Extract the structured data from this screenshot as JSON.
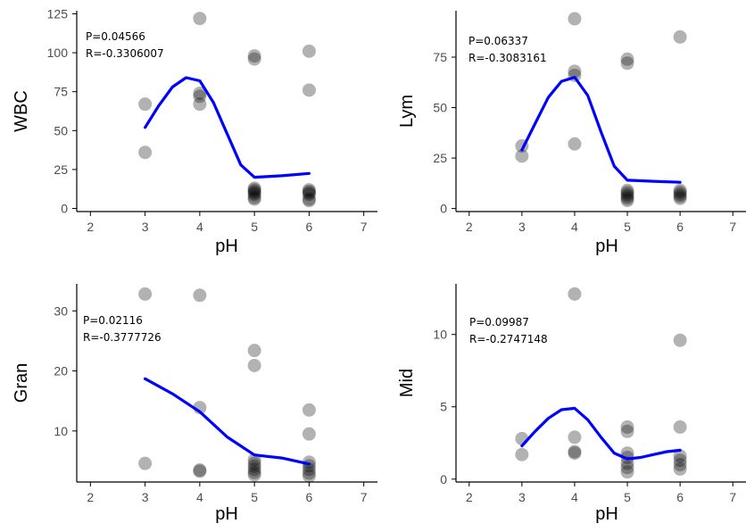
{
  "colors": {
    "points": "#000000",
    "smooth": "#0000ff",
    "axis": "#000000"
  },
  "chart_data": [
    {
      "type": "scatter",
      "title": "",
      "xlabel": "pH",
      "ylabel": "WBC",
      "xlim": [
        1.75,
        7.25
      ],
      "ylim": [
        -2,
        127
      ],
      "xticks": [
        2,
        3,
        4,
        5,
        6,
        7
      ],
      "yticks": [
        0,
        25,
        50,
        75,
        100,
        125
      ],
      "annotation": [
        "P=0.04566",
        "R=-0.3306007"
      ],
      "grid": false,
      "points": [
        {
          "x": 3,
          "y": 67
        },
        {
          "x": 3,
          "y": 36
        },
        {
          "x": 4,
          "y": 122
        },
        {
          "x": 4,
          "y": 74
        },
        {
          "x": 4,
          "y": 72
        },
        {
          "x": 4,
          "y": 67
        },
        {
          "x": 5,
          "y": 98
        },
        {
          "x": 5,
          "y": 96
        },
        {
          "x": 5,
          "y": 13
        },
        {
          "x": 5,
          "y": 12
        },
        {
          "x": 5,
          "y": 11
        },
        {
          "x": 5,
          "y": 10
        },
        {
          "x": 5,
          "y": 9
        },
        {
          "x": 5,
          "y": 7
        },
        {
          "x": 5,
          "y": 6
        },
        {
          "x": 6,
          "y": 101
        },
        {
          "x": 6,
          "y": 76
        },
        {
          "x": 6,
          "y": 12
        },
        {
          "x": 6,
          "y": 11
        },
        {
          "x": 6,
          "y": 10
        },
        {
          "x": 6,
          "y": 9
        },
        {
          "x": 6,
          "y": 6
        },
        {
          "x": 6,
          "y": 5
        }
      ],
      "smooth": [
        {
          "x": 3,
          "y": 52
        },
        {
          "x": 3.25,
          "y": 66
        },
        {
          "x": 3.5,
          "y": 78
        },
        {
          "x": 3.75,
          "y": 84
        },
        {
          "x": 4,
          "y": 82
        },
        {
          "x": 4.25,
          "y": 68
        },
        {
          "x": 4.5,
          "y": 48
        },
        {
          "x": 4.75,
          "y": 28
        },
        {
          "x": 5,
          "y": 20
        },
        {
          "x": 5.5,
          "y": 21
        },
        {
          "x": 6,
          "y": 22.5
        }
      ]
    },
    {
      "type": "scatter",
      "title": "",
      "xlabel": "pH",
      "ylabel": "Lym",
      "xlim": [
        1.75,
        7.25
      ],
      "ylim": [
        -1.5,
        98
      ],
      "xticks": [
        2,
        3,
        4,
        5,
        6,
        7
      ],
      "yticks": [
        0,
        25,
        50,
        75
      ],
      "annotation": [
        "P=0.06337",
        "R=-0.3083161"
      ],
      "grid": false,
      "points": [
        {
          "x": 3,
          "y": 31
        },
        {
          "x": 3,
          "y": 26
        },
        {
          "x": 4,
          "y": 94
        },
        {
          "x": 4,
          "y": 68
        },
        {
          "x": 4,
          "y": 66
        },
        {
          "x": 4,
          "y": 32
        },
        {
          "x": 5,
          "y": 74
        },
        {
          "x": 5,
          "y": 72
        },
        {
          "x": 5,
          "y": 9
        },
        {
          "x": 5,
          "y": 8
        },
        {
          "x": 5,
          "y": 7
        },
        {
          "x": 5,
          "y": 6
        },
        {
          "x": 5,
          "y": 5
        },
        {
          "x": 5,
          "y": 4
        },
        {
          "x": 6,
          "y": 85
        },
        {
          "x": 6,
          "y": 9
        },
        {
          "x": 6,
          "y": 8
        },
        {
          "x": 6,
          "y": 7
        },
        {
          "x": 6,
          "y": 6
        },
        {
          "x": 6,
          "y": 5
        }
      ],
      "smooth": [
        {
          "x": 3,
          "y": 29
        },
        {
          "x": 3.25,
          "y": 42
        },
        {
          "x": 3.5,
          "y": 55
        },
        {
          "x": 3.75,
          "y": 63
        },
        {
          "x": 4,
          "y": 65
        },
        {
          "x": 4.25,
          "y": 56
        },
        {
          "x": 4.5,
          "y": 38
        },
        {
          "x": 4.75,
          "y": 21
        },
        {
          "x": 5,
          "y": 14
        },
        {
          "x": 5.5,
          "y": 13.5
        },
        {
          "x": 6,
          "y": 13
        }
      ]
    },
    {
      "type": "scatter",
      "title": "",
      "xlabel": "pH",
      "ylabel": "Gran",
      "xlim": [
        1.75,
        7.25
      ],
      "ylim": [
        1.5,
        34.5
      ],
      "xticks": [
        2,
        3,
        4,
        5,
        6,
        7
      ],
      "yticks": [
        10,
        20,
        30
      ],
      "annotation": [
        "P=0.02116",
        "R=-0.3777726"
      ],
      "grid": false,
      "points": [
        {
          "x": 3,
          "y": 32.8
        },
        {
          "x": 3,
          "y": 4.6
        },
        {
          "x": 4,
          "y": 32.6
        },
        {
          "x": 4,
          "y": 13.9
        },
        {
          "x": 4,
          "y": 3.5
        },
        {
          "x": 4,
          "y": 3.3
        },
        {
          "x": 5,
          "y": 23.4
        },
        {
          "x": 5,
          "y": 20.9
        },
        {
          "x": 5,
          "y": 5.2
        },
        {
          "x": 5,
          "y": 4.6
        },
        {
          "x": 5,
          "y": 4.1
        },
        {
          "x": 5,
          "y": 3.6
        },
        {
          "x": 5,
          "y": 3.1
        },
        {
          "x": 5,
          "y": 2.7
        },
        {
          "x": 6,
          "y": 13.5
        },
        {
          "x": 6,
          "y": 9.5
        },
        {
          "x": 6,
          "y": 4.8
        },
        {
          "x": 6,
          "y": 4.2
        },
        {
          "x": 6,
          "y": 3.6
        },
        {
          "x": 6,
          "y": 3.0
        },
        {
          "x": 6,
          "y": 2.5
        }
      ],
      "smooth": [
        {
          "x": 3,
          "y": 18.7
        },
        {
          "x": 3.5,
          "y": 16.2
        },
        {
          "x": 4,
          "y": 13.2
        },
        {
          "x": 4.5,
          "y": 9
        },
        {
          "x": 5,
          "y": 6
        },
        {
          "x": 5.5,
          "y": 5.5
        },
        {
          "x": 6,
          "y": 4.5
        }
      ]
    },
    {
      "type": "scatter",
      "title": "",
      "xlabel": "pH",
      "ylabel": "Mid",
      "xlim": [
        1.75,
        7.25
      ],
      "ylim": [
        -0.2,
        13.5
      ],
      "xticks": [
        2,
        3,
        4,
        5,
        6,
        7
      ],
      "yticks": [
        0,
        5,
        10
      ],
      "annotation": [
        "P=0.09987",
        "R=-0.2747148"
      ],
      "grid": false,
      "points": [
        {
          "x": 3,
          "y": 2.8
        },
        {
          "x": 3,
          "y": 1.7
        },
        {
          "x": 4,
          "y": 12.8
        },
        {
          "x": 4,
          "y": 2.9
        },
        {
          "x": 4,
          "y": 1.9
        },
        {
          "x": 4,
          "y": 1.8
        },
        {
          "x": 5,
          "y": 3.6
        },
        {
          "x": 5,
          "y": 3.3
        },
        {
          "x": 5,
          "y": 1.8
        },
        {
          "x": 5,
          "y": 1.5
        },
        {
          "x": 5,
          "y": 1.1
        },
        {
          "x": 5,
          "y": 0.8
        },
        {
          "x": 5,
          "y": 0.5
        },
        {
          "x": 6,
          "y": 9.6
        },
        {
          "x": 6,
          "y": 3.6
        },
        {
          "x": 6,
          "y": 1.6
        },
        {
          "x": 6,
          "y": 1.3
        },
        {
          "x": 6,
          "y": 1.0
        },
        {
          "x": 6,
          "y": 0.7
        }
      ],
      "smooth": [
        {
          "x": 3,
          "y": 2.3
        },
        {
          "x": 3.25,
          "y": 3.3
        },
        {
          "x": 3.5,
          "y": 4.2
        },
        {
          "x": 3.75,
          "y": 4.8
        },
        {
          "x": 4,
          "y": 4.9
        },
        {
          "x": 4.25,
          "y": 4.1
        },
        {
          "x": 4.5,
          "y": 2.9
        },
        {
          "x": 4.75,
          "y": 1.8
        },
        {
          "x": 5,
          "y": 1.4
        },
        {
          "x": 5.25,
          "y": 1.5
        },
        {
          "x": 5.5,
          "y": 1.7
        },
        {
          "x": 5.75,
          "y": 1.9
        },
        {
          "x": 6,
          "y": 2.0
        }
      ]
    }
  ]
}
